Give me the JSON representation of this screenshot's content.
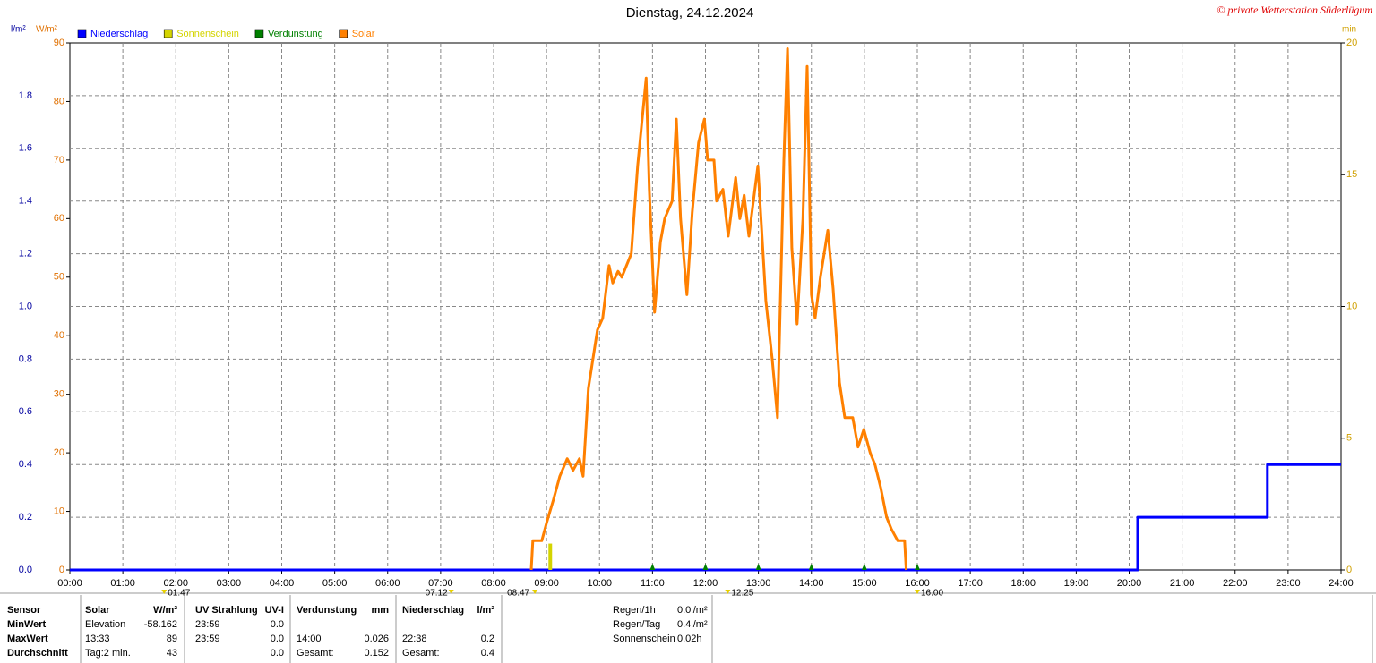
{
  "chart_data": {
    "type": "line",
    "title": "Dienstag, 24.12.2024",
    "credit": "© private Wetterstation Süderlügum",
    "y_label": "l/m²",
    "y2_label": "W/m²",
    "y3_label": "min",
    "xlim": [
      0,
      24
    ],
    "xticks": [
      {
        "value": 0,
        "label": "00:00"
      },
      {
        "value": 1,
        "label": "01:00"
      },
      {
        "value": 2,
        "label": "02:00"
      },
      {
        "value": 3,
        "label": "03:00"
      },
      {
        "value": 4,
        "label": "04:00"
      },
      {
        "value": 5,
        "label": "05:00"
      },
      {
        "value": 6,
        "label": "06:00"
      },
      {
        "value": 7,
        "label": "07:00"
      },
      {
        "value": 8,
        "label": "08:00"
      },
      {
        "value": 9,
        "label": "09:00"
      },
      {
        "value": 10,
        "label": "10:00"
      },
      {
        "value": 11,
        "label": "11:00"
      },
      {
        "value": 12,
        "label": "12:00"
      },
      {
        "value": 13,
        "label": "13:00"
      },
      {
        "value": 14,
        "label": "14:00"
      },
      {
        "value": 15,
        "label": "15:00"
      },
      {
        "value": 16,
        "label": "16:00"
      },
      {
        "value": 17,
        "label": "17:00"
      },
      {
        "value": 18,
        "label": "18:00"
      },
      {
        "value": 19,
        "label": "19:00"
      },
      {
        "value": 20,
        "label": "20:00"
      },
      {
        "value": 21,
        "label": "21:00"
      },
      {
        "value": 22,
        "label": "22:00"
      },
      {
        "value": 23,
        "label": "23:00"
      },
      {
        "value": 24,
        "label": "24:00"
      }
    ],
    "ylim": [
      0,
      2
    ],
    "yticks": [
      {
        "value": 0,
        "label": "0.0"
      },
      0.2,
      0.4,
      0.6,
      0.8,
      {
        "value": 1,
        "label": "1.0"
      },
      1.2,
      1.4,
      1.6,
      1.8
    ],
    "y2lim": [
      0,
      90
    ],
    "y2ticks": [
      0,
      10,
      20,
      30,
      40,
      50,
      60,
      70,
      80,
      90
    ],
    "y3lim": [
      0,
      20
    ],
    "y3ticks": [
      0,
      5,
      10,
      15,
      20
    ],
    "grid": true,
    "series": [
      {
        "name": "Niederschlag",
        "color": "#0000ff",
        "axis": "y",
        "mark": "line",
        "x": [
          0,
          20.16,
          20.16,
          22.61,
          22.61,
          24
        ],
        "values": [
          0,
          0,
          0.2,
          0.2,
          0.4,
          0.4
        ]
      },
      {
        "name": "Sonnenschein",
        "color": "#d4d400",
        "axis": "y3",
        "mark": "bar",
        "x": [
          9.07
        ],
        "values": [
          1
        ]
      },
      {
        "name": "Verdunstung",
        "color": "#008000",
        "axis": "y",
        "mark": "triangle",
        "x": [
          11,
          12,
          13,
          14,
          15,
          16
        ],
        "values": [
          0,
          0,
          0,
          0,
          0,
          0
        ]
      },
      {
        "name": "Solar",
        "color": "#ff8000",
        "axis": "y2",
        "mark": "line",
        "x": [
          8.71,
          8.74,
          8.79,
          8.91,
          9.0,
          9.13,
          9.25,
          9.39,
          9.5,
          9.62,
          9.69,
          9.79,
          9.96,
          10.06,
          10.18,
          10.25,
          10.35,
          10.42,
          10.6,
          10.72,
          10.88,
          10.94,
          11.04,
          11.15,
          11.23,
          11.37,
          11.45,
          11.53,
          11.65,
          11.75,
          11.87,
          11.98,
          12.04,
          12.16,
          12.21,
          12.33,
          12.43,
          12.57,
          12.65,
          12.73,
          12.82,
          12.99,
          13.14,
          13.26,
          13.36,
          13.48,
          13.55,
          13.63,
          13.73,
          13.84,
          13.92,
          14.0,
          14.07,
          14.17,
          14.31,
          14.41,
          14.53,
          14.63,
          14.78,
          14.88,
          14.99,
          15.11,
          15.2,
          15.31,
          15.42,
          15.51,
          15.63,
          15.76,
          15.79
        ],
        "values": [
          0,
          5,
          5,
          5,
          8,
          12,
          16,
          19,
          17,
          19,
          16,
          31,
          41,
          43,
          52,
          49,
          51,
          50,
          54,
          69,
          84,
          65,
          44,
          56,
          60,
          63,
          77,
          60,
          47,
          61,
          73,
          77,
          70,
          70,
          63,
          65,
          57,
          67,
          60,
          64,
          57,
          69,
          46,
          36,
          26,
          70,
          89,
          55,
          42,
          60,
          86,
          47,
          43,
          50,
          58,
          48,
          32,
          26,
          26,
          21,
          24,
          20,
          18,
          14,
          9,
          7,
          5,
          5,
          0
        ]
      }
    ],
    "sun_labels": [
      {
        "value": 7.2,
        "label": "07:12"
      },
      {
        "value": 1.78,
        "label": "01:47"
      },
      {
        "value": 8.78,
        "label": "08:47"
      },
      {
        "value": 12.42,
        "label": "12:25"
      },
      {
        "value": 16,
        "label": "16:00"
      }
    ]
  },
  "table": {
    "rows": [
      [
        "Sensor",
        "Solar",
        "W/m²",
        "UV Strahlung",
        "UV-I",
        "Verdunstung",
        "mm",
        "Niederschlag",
        "l/m²"
      ],
      [
        "MinWert",
        "Elevation",
        "-58.162",
        "23:59",
        "0.0",
        "",
        "",
        "",
        ""
      ],
      [
        "MaxWert",
        "13:33",
        "89",
        "23:59",
        "0.0",
        "14:00",
        "0.026",
        "22:38",
        "0.2"
      ],
      [
        "Durchschnitt",
        "Tag:2 min.",
        "43",
        "",
        "0.0",
        "Gesamt:",
        "0.152",
        "Gesamt:",
        "0.4"
      ]
    ],
    "extra": [
      [
        "Regen/1h",
        "0.0l/m²"
      ],
      [
        "Regen/Tag",
        "0.4l/m²"
      ],
      [
        "Sonnenschein",
        "0.02h"
      ]
    ]
  }
}
